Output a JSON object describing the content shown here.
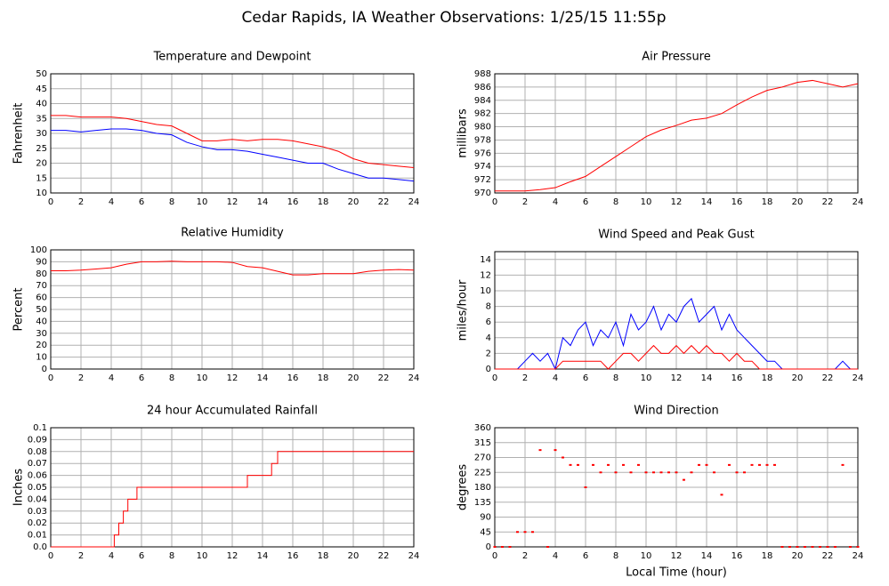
{
  "title": "Cedar Rapids, IA Weather Observations: 1/25/15 11:55p",
  "chart_data": [
    {
      "type": "line",
      "title": "Temperature and Dewpoint",
      "ylabel": "Fahrenheit",
      "x": [
        0,
        1,
        2,
        3,
        4,
        5,
        6,
        7,
        8,
        9,
        10,
        11,
        12,
        13,
        14,
        15,
        16,
        17,
        18,
        19,
        20,
        21,
        22,
        23,
        24
      ],
      "series": [
        {
          "color": "#ff0000",
          "values": [
            36,
            36,
            35.5,
            35.5,
            35.5,
            35,
            34,
            33,
            32.5,
            30,
            27.5,
            27.5,
            28,
            27.5,
            28,
            28,
            27.5,
            26.5,
            25.5,
            24,
            21.5,
            20,
            19.5,
            19,
            18.5
          ]
        },
        {
          "color": "#0000ff",
          "values": [
            31,
            31,
            30.5,
            31,
            31.5,
            31.5,
            31,
            30,
            29.5,
            27,
            25.5,
            24.5,
            24.5,
            24,
            23,
            22,
            21,
            20,
            20,
            18,
            16.5,
            15,
            15,
            14.5,
            14
          ]
        }
      ],
      "xlim": [
        0,
        24
      ],
      "xticks": [
        0,
        2,
        4,
        6,
        8,
        10,
        12,
        14,
        16,
        18,
        20,
        22,
        24
      ],
      "ylim": [
        10,
        50
      ],
      "yticks": [
        10,
        15,
        20,
        25,
        30,
        35,
        40,
        45,
        50
      ],
      "grid": true
    },
    {
      "type": "line",
      "title": "Air Pressure",
      "ylabel": "millibars",
      "x": [
        0,
        1,
        2,
        3,
        4,
        5,
        6,
        7,
        8,
        9,
        10,
        11,
        12,
        13,
        14,
        15,
        16,
        17,
        18,
        19,
        20,
        21,
        22,
        23,
        24
      ],
      "series": [
        {
          "color": "#ff0000",
          "values": [
            970.3,
            970.3,
            970.3,
            970.5,
            970.8,
            971.7,
            972.5,
            974,
            975.5,
            977,
            978.5,
            979.5,
            980.2,
            981,
            981.3,
            982,
            983.3,
            984.5,
            985.5,
            986,
            986.7,
            987,
            986.5,
            986,
            986.5
          ]
        }
      ],
      "xlim": [
        0,
        24
      ],
      "xticks": [
        0,
        2,
        4,
        6,
        8,
        10,
        12,
        14,
        16,
        18,
        20,
        22,
        24
      ],
      "ylim": [
        970,
        988
      ],
      "yticks": [
        970,
        972,
        974,
        976,
        978,
        980,
        982,
        984,
        986,
        988
      ],
      "grid": true
    },
    {
      "type": "line",
      "title": "Relative Humidity",
      "ylabel": "Percent",
      "x": [
        0,
        1,
        2,
        3,
        4,
        5,
        6,
        7,
        8,
        9,
        10,
        11,
        12,
        13,
        14,
        15,
        16,
        17,
        18,
        19,
        20,
        21,
        22,
        23,
        24
      ],
      "series": [
        {
          "color": "#ff0000",
          "values": [
            82.5,
            82.5,
            83,
            84,
            85,
            88,
            90,
            90,
            90.5,
            90,
            90,
            90,
            89.5,
            86,
            85,
            82,
            79,
            79,
            80,
            80,
            80,
            82,
            83,
            83.5,
            83
          ]
        }
      ],
      "xlim": [
        0,
        24
      ],
      "xticks": [
        0,
        2,
        4,
        6,
        8,
        10,
        12,
        14,
        16,
        18,
        20,
        22,
        24
      ],
      "ylim": [
        0,
        100
      ],
      "yticks": [
        0,
        10,
        20,
        30,
        40,
        50,
        60,
        70,
        80,
        90,
        100
      ],
      "grid": true
    },
    {
      "type": "line",
      "title": "Wind Speed and Peak Gust",
      "ylabel": "miles/hour",
      "x": [
        0,
        0.5,
        1,
        1.5,
        2,
        2.5,
        3,
        3.5,
        4,
        4.5,
        5,
        5.5,
        6,
        6.5,
        7,
        7.5,
        8,
        8.5,
        9,
        9.5,
        10,
        10.5,
        11,
        11.5,
        12,
        12.5,
        13,
        13.5,
        14,
        14.5,
        15,
        15.5,
        16,
        16.5,
        17,
        17.5,
        18,
        18.5,
        19,
        19.5,
        20,
        20.5,
        21,
        21.5,
        22,
        22.5,
        23,
        23.5,
        24
      ],
      "series": [
        {
          "color": "#0000ff",
          "values": [
            0,
            0,
            0,
            0,
            1,
            2,
            1,
            2,
            0,
            4,
            3,
            5,
            6,
            3,
            5,
            4,
            6,
            3,
            7,
            5,
            6,
            8,
            5,
            7,
            6,
            8,
            9,
            6,
            7,
            8,
            5,
            7,
            5,
            4,
            3,
            2,
            1,
            1,
            0,
            0,
            0,
            0,
            0,
            0,
            0,
            0,
            1,
            0,
            0
          ]
        },
        {
          "color": "#ff0000",
          "values": [
            0,
            0,
            0,
            0,
            0,
            0,
            0,
            0,
            0,
            1,
            1,
            1,
            1,
            1,
            1,
            0,
            1,
            2,
            2,
            1,
            2,
            3,
            2,
            2,
            3,
            2,
            3,
            2,
            3,
            2,
            2,
            1,
            2,
            1,
            1,
            0,
            0,
            0,
            0,
            0,
            0,
            0,
            0,
            0,
            0,
            0,
            0,
            0,
            0
          ]
        }
      ],
      "xlim": [
        0,
        24
      ],
      "xticks": [
        0,
        2,
        4,
        6,
        8,
        10,
        12,
        14,
        16,
        18,
        20,
        22,
        24
      ],
      "ylim": [
        0,
        15
      ],
      "yticks": [
        0,
        2,
        4,
        6,
        8,
        10,
        12,
        14
      ],
      "grid": true
    },
    {
      "type": "step",
      "title": "24 hour Accumulated Rainfall",
      "ylabel": "Inches",
      "x": [
        0,
        4,
        4.2,
        4.5,
        4.8,
        5.1,
        5.7,
        13,
        14.6,
        15,
        24
      ],
      "series": [
        {
          "color": "#ff0000",
          "values": [
            0,
            0,
            0.01,
            0.02,
            0.03,
            0.04,
            0.05,
            0.06,
            0.07,
            0.08,
            0.08
          ]
        }
      ],
      "xlim": [
        0,
        24
      ],
      "xticks": [
        0,
        2,
        4,
        6,
        8,
        10,
        12,
        14,
        16,
        18,
        20,
        22,
        24
      ],
      "ylim": [
        0,
        0.1
      ],
      "yticks": [
        {
          "value": 0,
          "label": "0.0"
        },
        0.01,
        0.02,
        0.03,
        0.04,
        0.05,
        0.06,
        0.07,
        0.08,
        0.09,
        0.1
      ],
      "grid": true
    },
    {
      "type": "scatter",
      "title": "Wind Direction",
      "ylabel": "degrees",
      "xlabel": "Local Time (hour)",
      "x": [
        0,
        0.5,
        1,
        1.5,
        2,
        2.5,
        3,
        3.5,
        4,
        4.5,
        5,
        5.5,
        6,
        6.5,
        7,
        7.5,
        8,
        8.5,
        9,
        9.5,
        10,
        10.5,
        11,
        11.5,
        12,
        12.5,
        13,
        13.5,
        14,
        14.5,
        15,
        15.5,
        16,
        16.5,
        17,
        17.5,
        18,
        18.5,
        19,
        19.5,
        20,
        20.5,
        21,
        21.5,
        22,
        22.5,
        23,
        23.5,
        24
      ],
      "series": [
        {
          "color": "#ff0000",
          "values": [
            0,
            0,
            0,
            45,
            45,
            45,
            292.5,
            0,
            292.5,
            270,
            247.5,
            247.5,
            180,
            247.5,
            225,
            247.5,
            225,
            247.5,
            225,
            247.5,
            225,
            225,
            225,
            225,
            225,
            202.5,
            225,
            247.5,
            247.5,
            225,
            157.5,
            247.5,
            225,
            225,
            247.5,
            247.5,
            247.5,
            247.5,
            0,
            0,
            0,
            0,
            0,
            0,
            0,
            0,
            247.5,
            0,
            0
          ]
        }
      ],
      "xlim": [
        0,
        24
      ],
      "xticks": [
        0,
        2,
        4,
        6,
        8,
        10,
        12,
        14,
        16,
        18,
        20,
        22,
        24
      ],
      "ylim": [
        0,
        360
      ],
      "yticks": [
        0,
        45,
        90,
        135,
        180,
        225,
        270,
        315,
        360
      ],
      "grid": true
    }
  ]
}
